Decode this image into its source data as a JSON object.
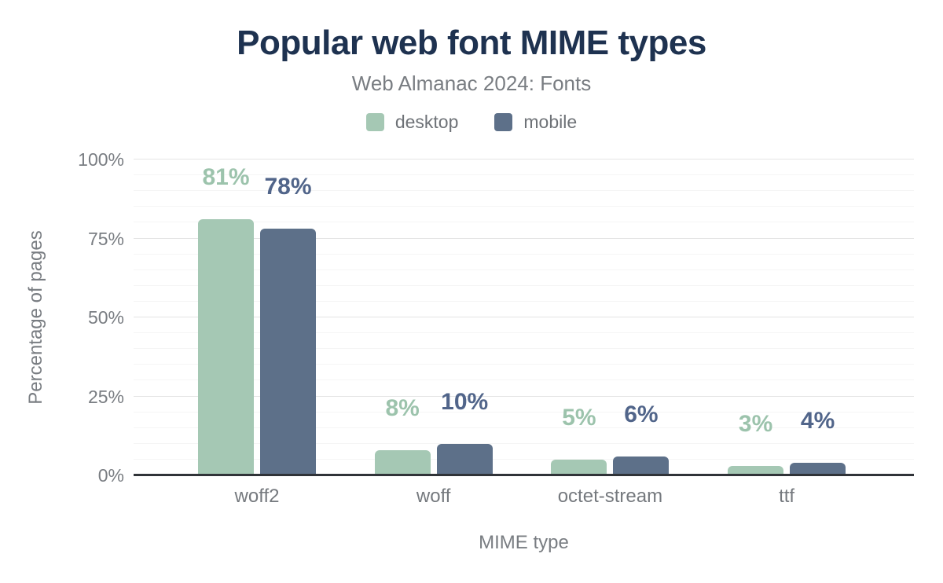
{
  "header": {
    "title": "Popular web font MIME types",
    "subtitle": "Web Almanac 2024: Fonts"
  },
  "legend": [
    {
      "label": "desktop",
      "color": "#a5c8b4"
    },
    {
      "label": "mobile",
      "color": "#5d7089"
    }
  ],
  "colors": {
    "title": "#1e3250",
    "subtitle": "#797d82",
    "axis_text": "#75797e",
    "axis_line": "#303338",
    "grid_major": "#e4e4e4",
    "grid_minor": "#f5f5f5"
  },
  "chart_data": {
    "type": "bar",
    "categories": [
      "woff2",
      "woff",
      "octet-stream",
      "ttf"
    ],
    "series": [
      {
        "name": "desktop",
        "color": "#a5c8b4",
        "label_color": "#9cc3ac",
        "values": [
          81,
          8,
          5,
          3
        ]
      },
      {
        "name": "mobile",
        "color": "#5d7089",
        "label_color": "#51658a",
        "values": [
          78,
          10,
          6,
          4
        ]
      }
    ],
    "value_suffix": "%",
    "title": "Popular web font MIME types",
    "subtitle": "Web Almanac 2024: Fonts",
    "xlabel": "MIME type",
    "ylabel": "Percentage of pages",
    "ylim": [
      0,
      100
    ],
    "yticks": [
      0,
      25,
      50,
      75,
      100
    ],
    "ytick_labels": [
      "0%",
      "25%",
      "50%",
      "75%",
      "100%"
    ],
    "minor_grid_step": 5,
    "grid": true,
    "legend_position": "top"
  }
}
